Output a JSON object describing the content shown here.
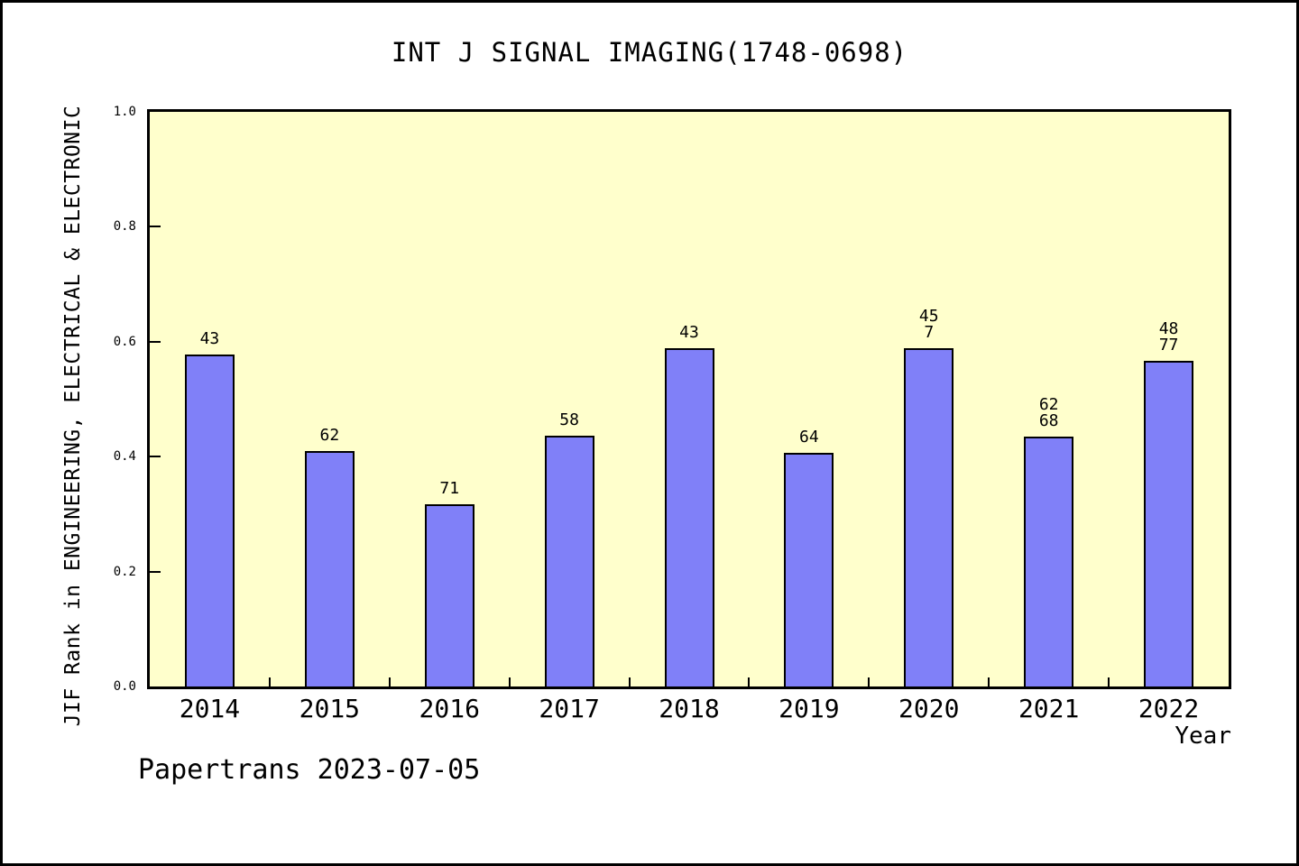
{
  "page": {
    "background": "#ffffff",
    "frame_border_color": "#000000"
  },
  "footer": {
    "text": "Papertrans 2023-07-05"
  },
  "chart_data": {
    "type": "bar",
    "title": "INT J SIGNAL IMAGING(1748-0698)",
    "xlabel": "Year",
    "ylabel": "JIF Rank in ENGINEERING, ELECTRICAL & ELECTRONIC",
    "categories": [
      "2014",
      "2015",
      "2016",
      "2017",
      "2018",
      "2019",
      "2020",
      "2021",
      "2022"
    ],
    "values": [
      0.578,
      0.409,
      0.317,
      0.437,
      0.589,
      0.406,
      0.589,
      0.435,
      0.567
    ],
    "bar_labels": [
      [
        "43"
      ],
      [
        "62"
      ],
      [
        "71"
      ],
      [
        "58"
      ],
      [
        "43"
      ],
      [
        "64"
      ],
      [
        "45",
        "7"
      ],
      [
        "62",
        "68"
      ],
      [
        "48",
        "77"
      ]
    ],
    "ylim": [
      0,
      1
    ],
    "yticks": [
      "0.0",
      "0.2",
      "0.4",
      "0.6",
      "0.8",
      "1.0"
    ],
    "grid": false,
    "legend": null,
    "bar_color": "#8080f8",
    "bar_border_color": "#000000",
    "plot_background": "#ffffcc"
  }
}
